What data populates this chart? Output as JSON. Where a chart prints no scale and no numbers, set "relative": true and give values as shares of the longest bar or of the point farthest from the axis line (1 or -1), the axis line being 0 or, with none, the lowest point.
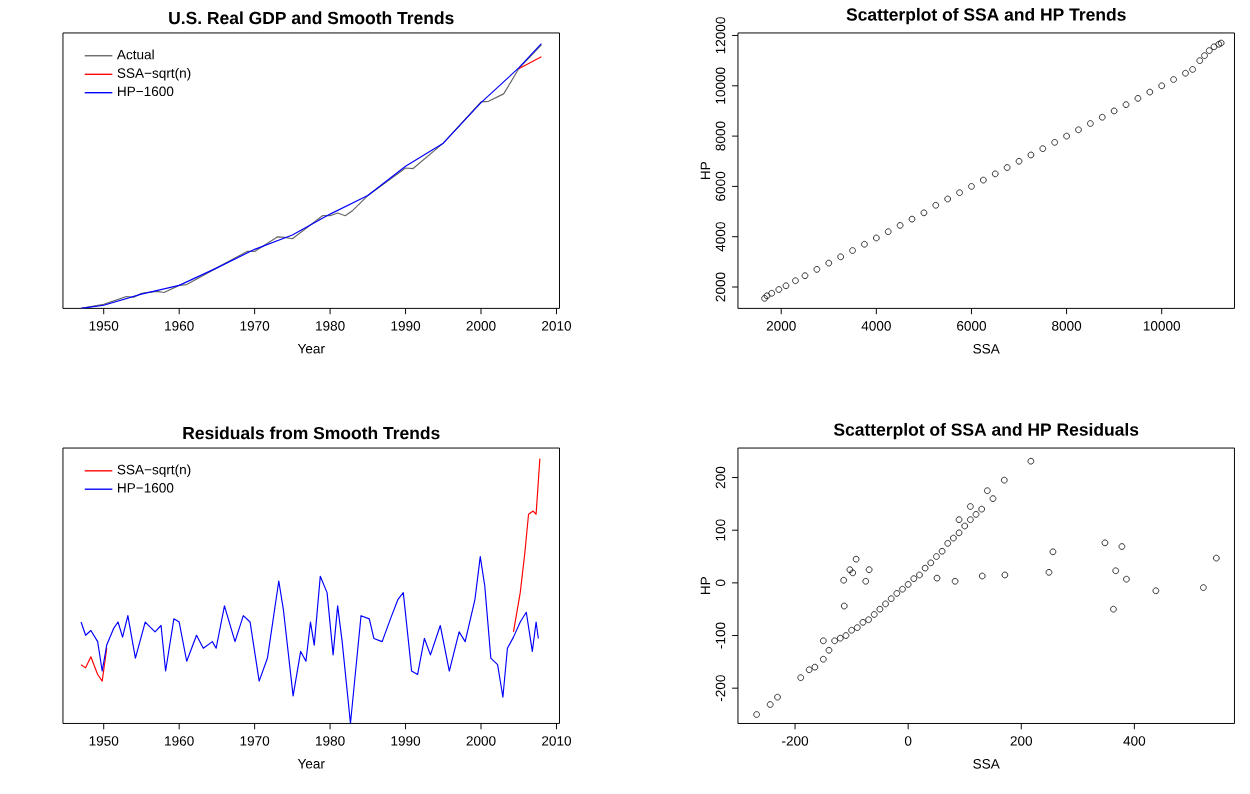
{
  "chart_data": [
    {
      "type": "line",
      "title": "U.S. Real GDP and Smooth Trends",
      "xlabel": "Year",
      "relative": true,
      "tick_labels": "x",
      "xlim": [
        1944.6,
        2010.4
      ],
      "xticks": [
        1950,
        1960,
        1970,
        1980,
        1990,
        2000,
        2010
      ],
      "legend": "top left",
      "marker": "none",
      "grid": false,
      "series": [
        {
          "name": "Actual",
          "color": "#666666",
          "x": [
            1947,
            1950,
            1953,
            1954,
            1955,
            1957,
            1958,
            1960,
            1961,
            1965,
            1969,
            1970,
            1973,
            1974,
            1975,
            1979,
            1980,
            1981,
            1982,
            1983,
            1985,
            1990,
            1991,
            1995,
            2000,
            2001,
            2003,
            2005,
            2008
          ],
          "values": [
            0,
            0.015,
            0.045,
            0.042,
            0.057,
            0.064,
            0.06,
            0.087,
            0.09,
            0.153,
            0.215,
            0.215,
            0.27,
            0.268,
            0.263,
            0.35,
            0.35,
            0.36,
            0.35,
            0.37,
            0.426,
            0.53,
            0.528,
            0.624,
            0.78,
            0.782,
            0.81,
            0.905,
            0.995
          ]
        },
        {
          "name": "SSA−sqrt(n)",
          "color": "#ff0000",
          "x": [
            2005,
            2008
          ],
          "values": [
            0.905,
            0.95
          ]
        },
        {
          "name": "HP−1600",
          "color": "#0000ff",
          "x": [
            1947,
            1950,
            1955,
            1960,
            1965,
            1970,
            1975,
            1980,
            1985,
            1990,
            1995,
            2000,
            2005,
            2008
          ],
          "values": [
            0,
            0.012,
            0.054,
            0.087,
            0.153,
            0.223,
            0.277,
            0.356,
            0.426,
            0.537,
            0.624,
            0.777,
            0.908,
            1
          ]
        }
      ]
    },
    {
      "type": "scatter",
      "title": "Scatterplot of SSA and HP Trends",
      "xlabel": "SSA",
      "ylabel": "HP",
      "xlim": [
        1090,
        11530
      ],
      "ylim": [
        1150,
        12100
      ],
      "xticks": [
        2000,
        4000,
        6000,
        8000,
        10000
      ],
      "yticks": [
        2000,
        4000,
        6000,
        8000,
        10000,
        12000
      ],
      "marker": "circle",
      "grid": false,
      "series": [
        {
          "color": "#000000",
          "x": [
            1650,
            1700,
            1800,
            1950,
            2100,
            2300,
            2500,
            2750,
            3000,
            3250,
            3500,
            3750,
            4000,
            4250,
            4500,
            4750,
            5000,
            5250,
            5500,
            5750,
            6000,
            6250,
            6500,
            6750,
            7000,
            7250,
            7500,
            7750,
            8000,
            8250,
            8500,
            8750,
            9000,
            9250,
            9500,
            9750,
            10000,
            10250,
            10500,
            10650,
            10800,
            10900,
            11000,
            11100,
            11200,
            11250
          ],
          "values": [
            1550,
            1650,
            1750,
            1900,
            2050,
            2250,
            2450,
            2700,
            2950,
            3200,
            3450,
            3700,
            3950,
            4200,
            4450,
            4700,
            4950,
            5250,
            5500,
            5750,
            6000,
            6250,
            6500,
            6750,
            7000,
            7250,
            7500,
            7750,
            8000,
            8250,
            8500,
            8750,
            9000,
            9250,
            9500,
            9750,
            10000,
            10250,
            10500,
            10650,
            11000,
            11200,
            11400,
            11550,
            11650,
            11700
          ]
        }
      ]
    },
    {
      "type": "line",
      "title": "Residuals from Smooth Trends",
      "xlabel": "Year",
      "relative": true,
      "tick_labels": "x",
      "xlim": [
        1944.6,
        2010.4
      ],
      "xticks": [
        1950,
        1960,
        1970,
        1980,
        1990,
        2000,
        2010
      ],
      "legend": "top left",
      "marker": "none",
      "grid": false,
      "series": [
        {
          "name": "SSA−sqrt(n)",
          "color": "#ff0000",
          "x": [
            1947.0,
            1947.6,
            1948.3,
            1949.2,
            1949.8,
            1950.4,
            1951.3,
            2004.3,
            2005.2,
            2005.8,
            2006.3,
            2006.9,
            2007.3,
            2007.8
          ],
          "values": [
            0.222,
            0.21,
            0.252,
            0.185,
            0.16,
            0.284,
            null,
            0.346,
            0.494,
            0.642,
            0.79,
            0.802,
            0.79,
            1
          ]
        },
        {
          "name": "HP−1600",
          "color": "#0000ff",
          "x": [
            1947.0,
            1947.6,
            1948.3,
            1949.2,
            1949.8,
            1950.4,
            1951.3,
            1951.9,
            1952.5,
            1953.2,
            1954.2,
            1955.5,
            1956.8,
            1957.6,
            1958.2,
            1959.3,
            1960,
            1961,
            1962.3,
            1963.2,
            1964.4,
            1964.9,
            1966,
            1967.4,
            1968.5,
            1969.4,
            1970.6,
            1971.7,
            1973.2,
            1973.8,
            1975.1,
            1976.1,
            1976.8,
            1977.4,
            1977.9,
            1978.7,
            1979.6,
            1980.4,
            1981,
            1981.6,
            1982.7,
            1984.1,
            1985.2,
            1985.8,
            1986.9,
            1988,
            1989,
            1989.7,
            1990.8,
            1991.6,
            1992.5,
            1993.3,
            1994.6,
            1995.8,
            1997.1,
            1997.9,
            1999.2,
            1999.9,
            2000.5,
            2001.3,
            2002.2,
            2002.9,
            2003.5,
            2004.3,
            2005.2,
            2006,
            2006.8,
            2007.3,
            2007.6
          ],
          "values": [
            0.383,
            0.333,
            0.351,
            0.309,
            0.198,
            0.296,
            0.358,
            0.383,
            0.326,
            0.407,
            0.247,
            0.383,
            0.346,
            0.37,
            0.198,
            0.395,
            0.383,
            0.235,
            0.333,
            0.284,
            0.309,
            0.284,
            0.444,
            0.309,
            0.407,
            0.383,
            0.16,
            0.247,
            0.538,
            0.432,
            0.104,
            0.272,
            0.235,
            0.383,
            0.296,
            0.556,
            0.494,
            0.259,
            0.444,
            0.309,
            0,
            0.407,
            0.395,
            0.321,
            0.309,
            0.395,
            0.469,
            0.494,
            0.198,
            0.185,
            0.321,
            0.259,
            0.37,
            0.198,
            0.346,
            0.309,
            0.469,
            0.63,
            0.519,
            0.247,
            0.222,
            0.099,
            0.284,
            0.326,
            0.383,
            0.42,
            0.272,
            0.383,
            0.321
          ]
        }
      ]
    },
    {
      "type": "scatter",
      "title": "Scatterplot of SSA and HP Residuals",
      "xlabel": "SSA",
      "ylabel": "HP",
      "xlim": [
        -301,
        577
      ],
      "ylim": [
        -267,
        256
      ],
      "xticks": [
        -200,
        0,
        200,
        400
      ],
      "yticks": [
        -200,
        -100,
        0,
        100,
        200
      ],
      "marker": "circle",
      "grid": false,
      "series": [
        {
          "color": "#000000",
          "x": [
            217,
            348,
            378,
            256,
            545,
            367,
            386,
            249,
            171,
            131,
            83,
            51,
            522,
            438,
            363,
            -92,
            -103,
            -69,
            -114,
            -75,
            -98,
            -113,
            -268,
            -244,
            -231,
            -190,
            -175,
            -165,
            -150,
            -140,
            -130,
            -120,
            -110,
            -100,
            -90,
            -80,
            -70,
            -60,
            -50,
            -40,
            -30,
            -20,
            -10,
            0,
            10,
            20,
            30,
            40,
            50,
            60,
            70,
            80,
            90,
            100,
            110,
            120,
            130,
            150,
            170,
            140,
            110,
            90,
            -150
          ],
          "values": [
            231,
            76,
            69,
            59,
            47,
            23,
            7,
            20,
            15,
            13,
            3,
            9,
            -9,
            -15,
            -50,
            45,
            25,
            25,
            5,
            3,
            19,
            -44,
            -250,
            -231,
            -217,
            -180,
            -165,
            -160,
            -145,
            -128,
            -110,
            -105,
            -100,
            -90,
            -85,
            -75,
            -70,
            -60,
            -50,
            -40,
            -30,
            -20,
            -12,
            -3,
            8,
            15,
            28,
            38,
            50,
            60,
            75,
            85,
            95,
            108,
            120,
            130,
            140,
            160,
            195,
            175,
            145,
            120,
            -110
          ]
        }
      ]
    }
  ]
}
